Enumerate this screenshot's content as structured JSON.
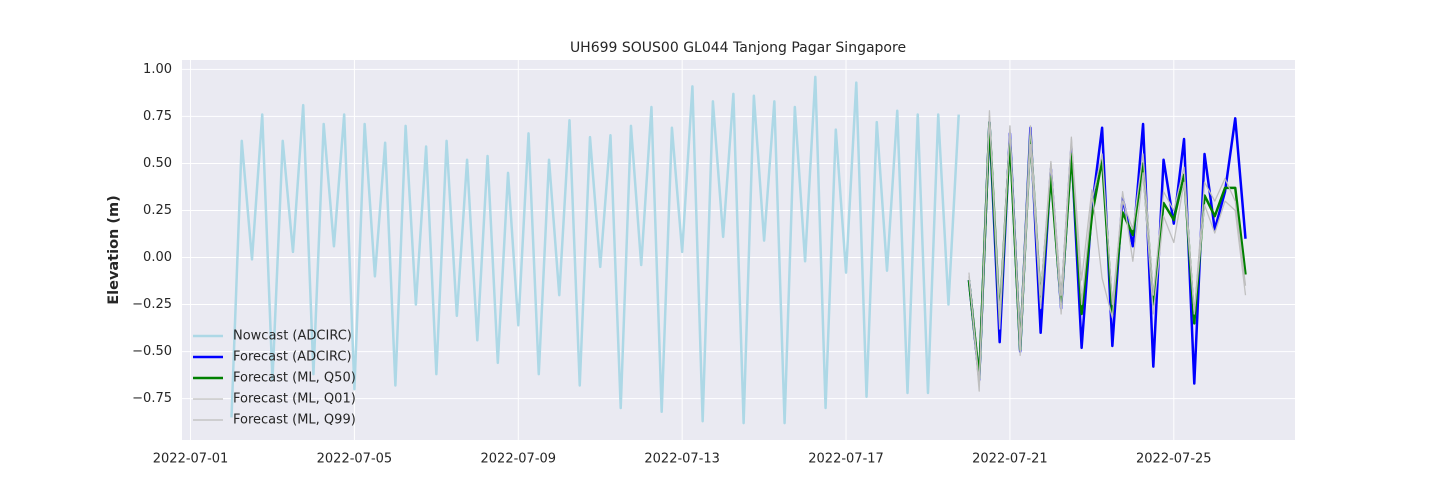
{
  "chart_data": {
    "type": "line",
    "title": "UH699 SOUS00 GL044 Tanjong Pagar Singapore",
    "y_label": "Elevation (m)",
    "xlim": [
      "2022-06-30T19:00",
      "2022-07-27T23:00"
    ],
    "xticks": [
      "2022-07-01",
      "2022-07-05",
      "2022-07-09",
      "2022-07-13",
      "2022-07-17",
      "2022-07-21",
      "2022-07-25"
    ],
    "ylim": [
      -0.97,
      1.05
    ],
    "yticks": [
      {
        "value": -0.75,
        "label": "−0.75"
      },
      {
        "value": -0.5,
        "label": "−0.50"
      },
      {
        "value": -0.25,
        "label": "−0.25"
      },
      {
        "value": 0,
        "label": "0.00"
      },
      {
        "value": 0.25,
        "label": "0.25"
      },
      {
        "value": 0.5,
        "label": "0.50"
      },
      {
        "value": 0.75,
        "label": "0.75"
      },
      {
        "value": 1,
        "label": "1.00"
      }
    ],
    "grid": true,
    "legend": "lower left",
    "series": [
      {
        "name": "Nowcast (ADCIRC)",
        "color": "#add8e6",
        "width": 2.5,
        "x": [
          "2022-07-02T00:00",
          "2022-07-02T06:00",
          "2022-07-02T12:00",
          "2022-07-02T18:00",
          "2022-07-03T00:00",
          "2022-07-03T06:00",
          "2022-07-03T12:00",
          "2022-07-03T18:00",
          "2022-07-04T00:00",
          "2022-07-04T06:00",
          "2022-07-04T12:00",
          "2022-07-04T18:00",
          "2022-07-05T00:00",
          "2022-07-05T06:00",
          "2022-07-05T12:00",
          "2022-07-05T18:00",
          "2022-07-06T00:00",
          "2022-07-06T06:00",
          "2022-07-06T12:00",
          "2022-07-06T18:00",
          "2022-07-07T00:00",
          "2022-07-07T06:00",
          "2022-07-07T12:00",
          "2022-07-07T18:00",
          "2022-07-08T00:00",
          "2022-07-08T06:00",
          "2022-07-08T12:00",
          "2022-07-08T18:00",
          "2022-07-09T00:00",
          "2022-07-09T06:00",
          "2022-07-09T12:00",
          "2022-07-09T18:00",
          "2022-07-10T00:00",
          "2022-07-10T06:00",
          "2022-07-10T12:00",
          "2022-07-10T18:00",
          "2022-07-11T00:00",
          "2022-07-11T06:00",
          "2022-07-11T12:00",
          "2022-07-11T18:00",
          "2022-07-12T00:00",
          "2022-07-12T06:00",
          "2022-07-12T12:00",
          "2022-07-12T18:00",
          "2022-07-13T00:00",
          "2022-07-13T06:00",
          "2022-07-13T12:00",
          "2022-07-13T18:00",
          "2022-07-14T00:00",
          "2022-07-14T06:00",
          "2022-07-14T12:00",
          "2022-07-14T18:00",
          "2022-07-15T00:00",
          "2022-07-15T06:00",
          "2022-07-15T12:00",
          "2022-07-15T18:00",
          "2022-07-16T00:00",
          "2022-07-16T06:00",
          "2022-07-16T12:00",
          "2022-07-16T18:00",
          "2022-07-17T00:00",
          "2022-07-17T06:00",
          "2022-07-17T12:00",
          "2022-07-17T18:00",
          "2022-07-18T00:00",
          "2022-07-18T06:00",
          "2022-07-18T12:00",
          "2022-07-18T18:00",
          "2022-07-19T00:00",
          "2022-07-19T06:00",
          "2022-07-19T12:00",
          "2022-07-19T18:00"
        ],
        "values": [
          -0.85,
          0.62,
          -0.01,
          0.76,
          -0.65,
          0.62,
          0.03,
          0.81,
          -0.62,
          0.71,
          0.06,
          0.76,
          -0.7,
          0.71,
          -0.1,
          0.61,
          -0.68,
          0.7,
          -0.25,
          0.59,
          -0.62,
          0.62,
          -0.31,
          0.52,
          -0.44,
          0.54,
          -0.56,
          0.45,
          -0.36,
          0.66,
          -0.62,
          0.52,
          -0.2,
          0.73,
          -0.68,
          0.64,
          -0.05,
          0.65,
          -0.8,
          0.7,
          -0.04,
          0.8,
          -0.82,
          0.69,
          0.03,
          0.91,
          -0.87,
          0.83,
          0.11,
          0.87,
          -0.88,
          0.86,
          0.09,
          0.83,
          -0.88,
          0.8,
          -0.02,
          0.96,
          -0.8,
          0.68,
          -0.08,
          0.93,
          -0.74,
          0.72,
          -0.07,
          0.78,
          -0.72,
          0.76,
          -0.72,
          0.76,
          -0.25,
          0.76
        ]
      },
      {
        "name": "Forecast (ADCIRC)",
        "color": "#0000ff",
        "width": 2.5,
        "x": [
          "2022-07-20T00:00",
          "2022-07-20T06:00",
          "2022-07-20T12:00",
          "2022-07-20T18:00",
          "2022-07-21T00:00",
          "2022-07-21T06:00",
          "2022-07-21T12:00",
          "2022-07-21T18:00",
          "2022-07-22T00:00",
          "2022-07-22T06:00",
          "2022-07-22T12:00",
          "2022-07-22T18:00",
          "2022-07-23T00:00",
          "2022-07-23T06:00",
          "2022-07-23T12:00",
          "2022-07-23T18:00",
          "2022-07-24T00:00",
          "2022-07-24T06:00",
          "2022-07-24T12:00",
          "2022-07-24T18:00",
          "2022-07-25T00:00",
          "2022-07-25T06:00",
          "2022-07-25T12:00",
          "2022-07-25T18:00",
          "2022-07-26T00:00",
          "2022-07-26T06:00",
          "2022-07-26T12:00",
          "2022-07-26T18:00"
        ],
        "values": [
          -0.12,
          -0.65,
          0.72,
          -0.45,
          0.66,
          -0.5,
          0.69,
          -0.4,
          0.47,
          -0.27,
          0.58,
          -0.48,
          0.26,
          0.69,
          -0.47,
          0.32,
          0.06,
          0.71,
          -0.58,
          0.52,
          0.18,
          0.63,
          -0.67,
          0.55,
          0.15,
          0.35,
          0.74,
          0.1
        ]
      },
      {
        "name": "Forecast (ML, Q50)",
        "color": "#008000",
        "width": 2.5,
        "x": [
          "2022-07-20T00:00",
          "2022-07-20T06:00",
          "2022-07-20T12:00",
          "2022-07-20T18:00",
          "2022-07-21T00:00",
          "2022-07-21T06:00",
          "2022-07-21T12:00",
          "2022-07-21T18:00",
          "2022-07-22T00:00",
          "2022-07-22T06:00",
          "2022-07-22T12:00",
          "2022-07-22T18:00",
          "2022-07-23T00:00",
          "2022-07-23T06:00",
          "2022-07-23T12:00",
          "2022-07-23T18:00",
          "2022-07-24T00:00",
          "2022-07-24T06:00",
          "2022-07-24T12:00",
          "2022-07-24T18:00",
          "2022-07-25T00:00",
          "2022-07-25T06:00",
          "2022-07-25T12:00",
          "2022-07-25T18:00",
          "2022-07-26T00:00",
          "2022-07-26T06:00",
          "2022-07-26T12:00",
          "2022-07-26T18:00"
        ],
        "values": [
          -0.12,
          -0.64,
          0.72,
          -0.33,
          0.63,
          -0.49,
          0.65,
          -0.23,
          0.43,
          -0.25,
          0.55,
          -0.3,
          0.22,
          0.52,
          -0.3,
          0.24,
          0.12,
          0.5,
          -0.25,
          0.29,
          0.2,
          0.44,
          -0.35,
          0.33,
          0.22,
          0.37,
          0.37,
          -0.09
        ]
      },
      {
        "name": "Forecast (ML, Q01)",
        "color": "#c0c0c0",
        "width": 1.3,
        "x": [
          "2022-07-20T00:00",
          "2022-07-20T06:00",
          "2022-07-20T12:00",
          "2022-07-20T18:00",
          "2022-07-21T00:00",
          "2022-07-21T06:00",
          "2022-07-21T12:00",
          "2022-07-21T18:00",
          "2022-07-22T00:00",
          "2022-07-22T06:00",
          "2022-07-22T12:00",
          "2022-07-22T18:00",
          "2022-07-23T00:00",
          "2022-07-23T06:00",
          "2022-07-23T12:00",
          "2022-07-23T18:00",
          "2022-07-24T00:00",
          "2022-07-24T06:00",
          "2022-07-24T12:00",
          "2022-07-24T18:00",
          "2022-07-25T00:00",
          "2022-07-25T06:00",
          "2022-07-25T12:00",
          "2022-07-25T18:00",
          "2022-07-26T00:00",
          "2022-07-26T06:00",
          "2022-07-26T12:00",
          "2022-07-26T18:00"
        ],
        "values": [
          -0.08,
          -0.71,
          0.78,
          -0.38,
          0.7,
          -0.52,
          0.6,
          -0.27,
          0.5,
          -0.3,
          0.63,
          -0.12,
          0.36,
          -0.11,
          -0.32,
          0.35,
          -0.02,
          0.45,
          -0.3,
          0.22,
          0.08,
          0.4,
          -0.3,
          0.28,
          0.13,
          0.3,
          0.25,
          -0.2
        ]
      },
      {
        "name": "Forecast (ML, Q99)",
        "color": "#bdbdbd",
        "width": 1.3,
        "x": [
          "2022-07-20T00:00",
          "2022-07-20T06:00",
          "2022-07-20T12:00",
          "2022-07-20T18:00",
          "2022-07-21T00:00",
          "2022-07-21T06:00",
          "2022-07-21T12:00",
          "2022-07-21T18:00",
          "2022-07-22T00:00",
          "2022-07-22T06:00",
          "2022-07-22T12:00",
          "2022-07-22T18:00",
          "2022-07-23T00:00",
          "2022-07-23T06:00",
          "2022-07-23T12:00",
          "2022-07-23T18:00",
          "2022-07-24T00:00",
          "2022-07-24T06:00",
          "2022-07-24T12:00",
          "2022-07-24T18:00",
          "2022-07-25T00:00",
          "2022-07-25T06:00",
          "2022-07-25T12:00",
          "2022-07-25T18:00",
          "2022-07-26T00:00",
          "2022-07-26T06:00",
          "2022-07-26T12:00",
          "2022-07-26T18:00"
        ],
        "values": [
          -0.1,
          -0.66,
          0.75,
          -0.3,
          0.68,
          -0.45,
          0.7,
          -0.2,
          0.51,
          -0.2,
          0.64,
          -0.25,
          0.3,
          0.55,
          -0.25,
          0.3,
          0.15,
          0.55,
          -0.2,
          0.35,
          0.25,
          0.48,
          -0.3,
          0.4,
          0.3,
          0.42,
          0.3,
          -0.15
        ]
      }
    ]
  }
}
